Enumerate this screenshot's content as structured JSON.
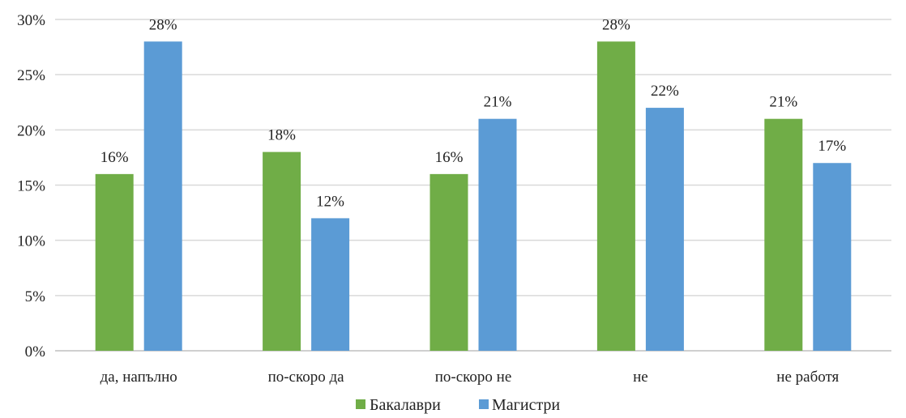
{
  "chart_data": {
    "type": "bar",
    "categories": [
      "да, напълно",
      "по-скоро да",
      "по-скоро не",
      "не",
      "не работя"
    ],
    "series": [
      {
        "name": "Бакалаври",
        "values": [
          16,
          18,
          16,
          28,
          21
        ],
        "color": "#70ad47"
      },
      {
        "name": "Магистри",
        "values": [
          28,
          12,
          21,
          22,
          17
        ],
        "color": "#5b9bd5"
      }
    ],
    "y_ticks": [
      "0%",
      "5%",
      "10%",
      "15%",
      "20%",
      "25%",
      "30%"
    ],
    "ylim": [
      0,
      30
    ],
    "y_unit": "%",
    "grid": true,
    "legend_position": "bottom"
  }
}
